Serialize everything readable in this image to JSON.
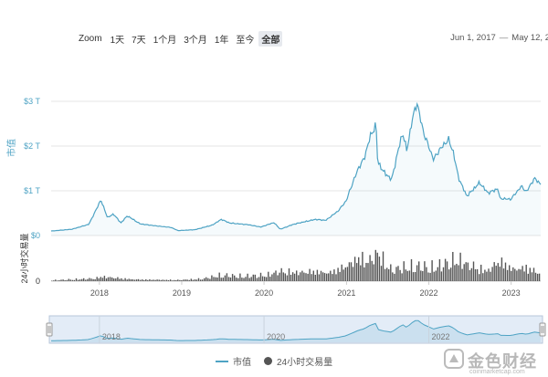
{
  "toolbar": {
    "zoom_label": "Zoom",
    "buttons": [
      "1天",
      "7天",
      "1个月",
      "3个月",
      "1年",
      "至今",
      "全部"
    ],
    "active": "全部"
  },
  "range": {
    "from": "Jun 1, 2017",
    "sep": "—",
    "to": "May 12, 2"
  },
  "colors": {
    "market_cap": "#4ea3c4",
    "volume": "#555555",
    "navigator_fill": "#d7e4f3",
    "accent": "#4ea3c4"
  },
  "legend": {
    "market_cap": "市值",
    "volume": "24小时交易量"
  },
  "watermark": {
    "text": "金色财经",
    "url": "coinmarketcap.com"
  },
  "chart_data": {
    "type": "area",
    "x_ticks": [
      "2018",
      "2019",
      "2020",
      "2021",
      "2022",
      "2023"
    ],
    "navigator_ticks": [
      "2018",
      "2020",
      "2022"
    ],
    "series": [
      {
        "name": "市值",
        "unit": "T",
        "y_ticks": [
          "$0",
          "$1 T",
          "$2 T",
          "$3 T"
        ],
        "ylabel": "市值",
        "ylim": [
          0,
          3
        ],
        "points": [
          [
            "2017-06-01",
            0.1
          ],
          [
            "2017-09-01",
            0.14
          ],
          [
            "2017-11-15",
            0.25
          ],
          [
            "2017-12-20",
            0.6
          ],
          [
            "2018-01-07",
            0.8
          ],
          [
            "2018-02-06",
            0.4
          ],
          [
            "2018-03-05",
            0.48
          ],
          [
            "2018-04-06",
            0.28
          ],
          [
            "2018-05-05",
            0.44
          ],
          [
            "2018-07-01",
            0.26
          ],
          [
            "2018-09-01",
            0.22
          ],
          [
            "2018-11-15",
            0.18
          ],
          [
            "2018-12-15",
            0.11
          ],
          [
            "2019-03-01",
            0.13
          ],
          [
            "2019-05-15",
            0.23
          ],
          [
            "2019-06-26",
            0.36
          ],
          [
            "2019-08-01",
            0.28
          ],
          [
            "2019-10-26",
            0.24
          ],
          [
            "2019-12-18",
            0.19
          ],
          [
            "2020-02-14",
            0.29
          ],
          [
            "2020-03-13",
            0.14
          ],
          [
            "2020-05-10",
            0.25
          ],
          [
            "2020-08-15",
            0.36
          ],
          [
            "2020-10-01",
            0.34
          ],
          [
            "2020-11-25",
            0.55
          ],
          [
            "2020-12-31",
            0.78
          ],
          [
            "2021-01-15",
            1.0
          ],
          [
            "2021-02-22",
            1.5
          ],
          [
            "2021-03-20",
            1.72
          ],
          [
            "2021-04-15",
            2.2
          ],
          [
            "2021-05-12",
            2.48
          ],
          [
            "2021-05-19",
            1.65
          ],
          [
            "2021-06-15",
            1.42
          ],
          [
            "2021-07-20",
            1.25
          ],
          [
            "2021-08-20",
            1.95
          ],
          [
            "2021-09-07",
            2.3
          ],
          [
            "2021-09-25",
            1.9
          ],
          [
            "2021-10-20",
            2.6
          ],
          [
            "2021-11-09",
            2.98
          ],
          [
            "2021-11-25",
            2.6
          ],
          [
            "2021-12-10",
            2.28
          ],
          [
            "2022-01-22",
            1.7
          ],
          [
            "2022-02-15",
            1.9
          ],
          [
            "2022-03-29",
            2.15
          ],
          [
            "2022-04-20",
            1.85
          ],
          [
            "2022-05-12",
            1.3
          ],
          [
            "2022-06-18",
            0.88
          ],
          [
            "2022-08-14",
            1.18
          ],
          [
            "2022-09-20",
            0.95
          ],
          [
            "2022-11-05",
            1.05
          ],
          [
            "2022-11-10",
            0.83
          ],
          [
            "2022-12-30",
            0.81
          ],
          [
            "2023-02-15",
            1.1
          ],
          [
            "2023-03-10",
            0.98
          ],
          [
            "2023-04-14",
            1.28
          ],
          [
            "2023-05-12",
            1.15
          ]
        ]
      },
      {
        "name": "24小时交易量",
        "ylabel": "24小时交易量",
        "y_ticks": [
          "0"
        ],
        "points": [
          [
            "2017-06-01",
            0.03
          ],
          [
            "2017-12-20",
            0.1
          ],
          [
            "2018-01-07",
            0.16
          ],
          [
            "2018-06-01",
            0.06
          ],
          [
            "2018-12-15",
            0.04
          ],
          [
            "2019-04-01",
            0.08
          ],
          [
            "2019-06-26",
            0.22
          ],
          [
            "2019-10-01",
            0.18
          ],
          [
            "2020-01-15",
            0.22
          ],
          [
            "2020-03-13",
            0.35
          ],
          [
            "2020-06-01",
            0.3
          ],
          [
            "2020-08-15",
            0.34
          ],
          [
            "2020-10-15",
            0.28
          ],
          [
            "2021-01-10",
            0.55
          ],
          [
            "2021-02-22",
            0.8
          ],
          [
            "2021-04-15",
            0.7
          ],
          [
            "2021-05-19",
            1.0
          ],
          [
            "2021-07-20",
            0.4
          ],
          [
            "2021-09-07",
            0.5
          ],
          [
            "2021-11-09",
            0.55
          ],
          [
            "2022-01-22",
            0.5
          ],
          [
            "2022-05-12",
            0.78
          ],
          [
            "2022-06-18",
            0.6
          ],
          [
            "2022-09-20",
            0.35
          ],
          [
            "2022-11-10",
            0.7
          ],
          [
            "2023-01-15",
            0.4
          ],
          [
            "2023-03-15",
            0.48
          ],
          [
            "2023-05-12",
            0.25
          ]
        ]
      }
    ]
  }
}
